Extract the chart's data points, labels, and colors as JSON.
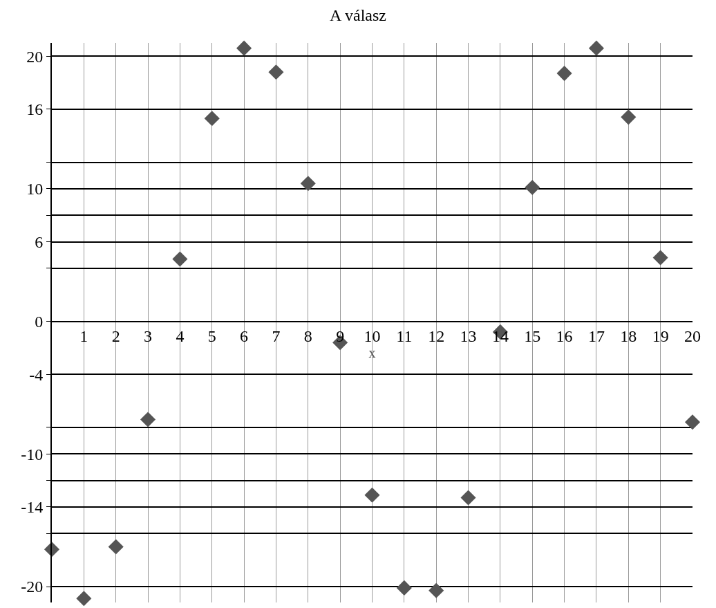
{
  "chart_data": {
    "type": "scatter",
    "title": "A válasz",
    "xlabel": "x",
    "x": [
      0,
      1,
      2,
      3,
      4,
      5,
      6,
      7,
      8,
      9,
      10,
      11,
      12,
      13,
      14,
      15,
      16,
      17,
      18,
      19,
      20
    ],
    "series": [
      {
        "color": "#555555",
        "values": [
          -17.2,
          -20.9,
          -17.0,
          -7.4,
          4.7,
          15.3,
          20.6,
          18.8,
          10.4,
          -1.6,
          -13.1,
          -20.1,
          -20.3,
          -13.3,
          -0.8,
          10.1,
          18.7,
          20.6,
          15.4,
          4.8,
          -7.6
        ]
      }
    ],
    "marker": "diamond",
    "xlim": [
      0,
      20
    ],
    "ylim": [
      -21.2,
      21
    ],
    "xticks": [
      1,
      2,
      3,
      4,
      5,
      6,
      7,
      8,
      9,
      10,
      11,
      12,
      13,
      14,
      15,
      16,
      17,
      18,
      19,
      20
    ],
    "yticks": [
      20,
      16,
      {
        "value": 12,
        "label": null
      },
      10,
      {
        "value": 8,
        "label": null
      },
      6,
      {
        "value": 4,
        "label": null
      },
      0,
      -4,
      {
        "value": -8,
        "label": null
      },
      -10,
      {
        "value": -12,
        "label": null
      },
      -14,
      {
        "value": -16,
        "label": null
      },
      -20
    ],
    "grid": true
  }
}
